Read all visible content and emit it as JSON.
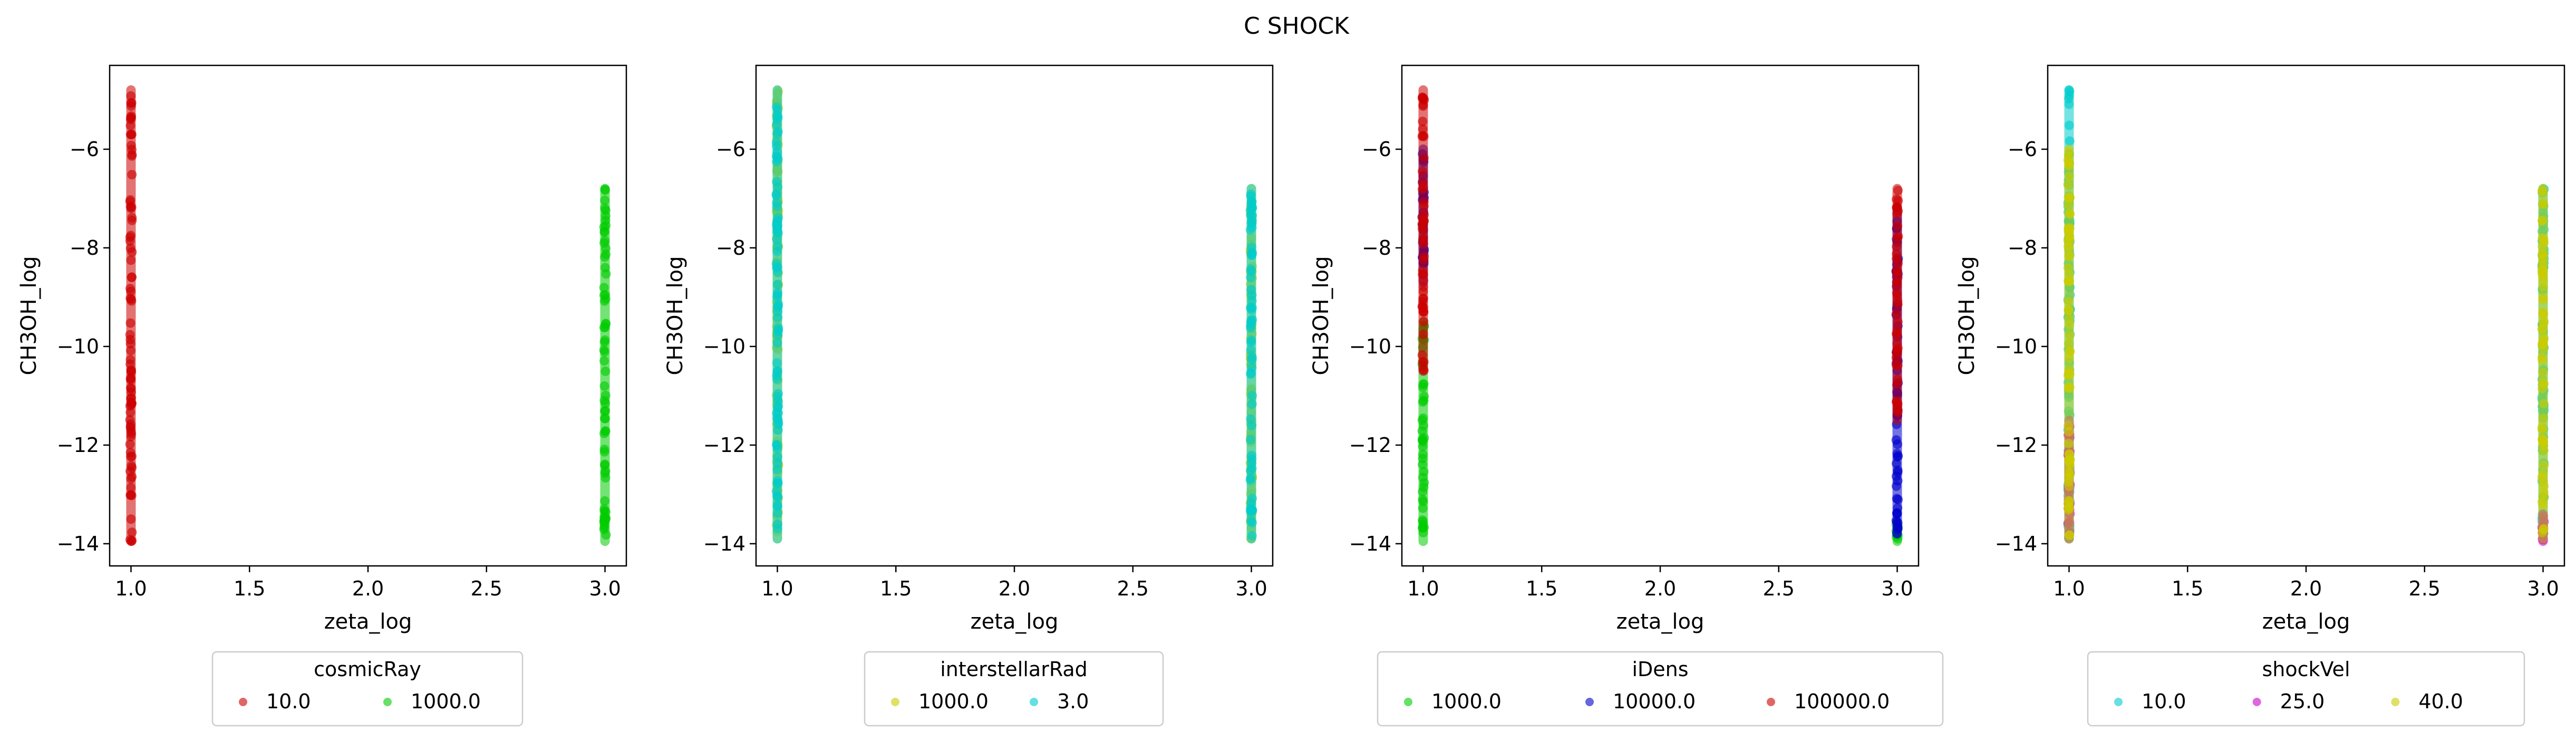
{
  "figure": {
    "title": "C SHOCK"
  },
  "chart_data": [
    {
      "type": "scatter",
      "xlabel": "zeta_log",
      "ylabel": "CH3OH_log",
      "xlim": [
        0.91,
        3.09
      ],
      "ylim": [
        -14.45,
        -4.3
      ],
      "xticks": [
        "1.0",
        "1.5",
        "2.0",
        "2.5",
        "3.0"
      ],
      "yticks": [
        "-6",
        "-8",
        "-10",
        "-12",
        "-14"
      ],
      "xtick_values": [
        1.0,
        1.5,
        2.0,
        2.5,
        3.0
      ],
      "ytick_values": [
        -6,
        -8,
        -10,
        -12,
        -14
      ],
      "legend": {
        "title": "cosmicRay",
        "position": "below"
      },
      "series": [
        {
          "name": "10.0",
          "color": "#cc0000",
          "points": [
            {
              "x": 1.0,
              "y_range": [
                -13.95,
                -4.8
              ]
            }
          ]
        },
        {
          "name": "1000.0",
          "color": "#00cc00",
          "points": [
            {
              "x": 3.0,
              "y_range": [
                -13.95,
                -6.8
              ]
            }
          ]
        }
      ]
    },
    {
      "type": "scatter",
      "xlabel": "zeta_log",
      "ylabel": "CH3OH_log",
      "xlim": [
        0.91,
        3.09
      ],
      "ylim": [
        -14.45,
        -4.3
      ],
      "xticks": [
        "1.0",
        "1.5",
        "2.0",
        "2.5",
        "3.0"
      ],
      "yticks": [
        "-6",
        "-8",
        "-10",
        "-12",
        "-14"
      ],
      "xtick_values": [
        1.0,
        1.5,
        2.0,
        2.5,
        3.0
      ],
      "ytick_values": [
        -6,
        -8,
        -10,
        -12,
        -14
      ],
      "legend": {
        "title": "interstellarRad",
        "position": "below"
      },
      "series": [
        {
          "name": "1000.0",
          "color": "#cccc00",
          "points": [
            {
              "x": 1.0,
              "y_range": [
                -13.9,
                -4.8
              ]
            },
            {
              "x": 3.0,
              "y_range": [
                -13.9,
                -6.8
              ]
            }
          ]
        },
        {
          "name": "3.0",
          "color": "#00cccc",
          "points": [
            {
              "x": 1.0,
              "y_range": [
                -13.9,
                -4.8
              ]
            },
            {
              "x": 3.0,
              "y_range": [
                -13.9,
                -6.8
              ]
            }
          ]
        }
      ]
    },
    {
      "type": "scatter",
      "xlabel": "zeta_log",
      "ylabel": "CH3OH_log",
      "xlim": [
        0.91,
        3.09
      ],
      "ylim": [
        -14.45,
        -4.3
      ],
      "xticks": [
        "1.0",
        "1.5",
        "2.0",
        "2.5",
        "3.0"
      ],
      "yticks": [
        "-6",
        "-8",
        "-10",
        "-12",
        "-14"
      ],
      "xtick_values": [
        1.0,
        1.5,
        2.0,
        2.5,
        3.0
      ],
      "ytick_values": [
        -6,
        -8,
        -10,
        -12,
        -14
      ],
      "legend": {
        "title": "iDens",
        "position": "below"
      },
      "series": [
        {
          "name": "1000.0",
          "color": "#00cc00",
          "points": [
            {
              "x": 1.0,
              "y_range": [
                -13.95,
                -9.5
              ]
            },
            {
              "x": 3.0,
              "y_range": [
                -13.95,
                -13.6
              ]
            }
          ]
        },
        {
          "name": "10000.0",
          "color": "#0000cc",
          "points": [
            {
              "x": 1.0,
              "y_range": [
                -8.7,
                -6.0
              ]
            },
            {
              "x": 3.0,
              "y_range": [
                -13.8,
                -7.2
              ]
            }
          ]
        },
        {
          "name": "100000.0",
          "color": "#cc0000",
          "points": [
            {
              "x": 1.0,
              "y_range": [
                -10.5,
                -4.8
              ]
            },
            {
              "x": 3.0,
              "y_range": [
                -11.5,
                -6.8
              ]
            }
          ]
        }
      ]
    },
    {
      "type": "scatter",
      "xlabel": "zeta_log",
      "ylabel": "CH3OH_log",
      "xlim": [
        0.91,
        3.09
      ],
      "ylim": [
        -14.45,
        -4.3
      ],
      "xticks": [
        "1.0",
        "1.5",
        "2.0",
        "2.5",
        "3.0"
      ],
      "yticks": [
        "-6",
        "-8",
        "-10",
        "-12",
        "-14"
      ],
      "xtick_values": [
        1.0,
        1.5,
        2.0,
        2.5,
        3.0
      ],
      "ytick_values": [
        -6,
        -8,
        -10,
        -12,
        -14
      ],
      "legend": {
        "title": "shockVel",
        "position": "below"
      },
      "series": [
        {
          "name": "10.0",
          "color": "#00cccc",
          "points": [
            {
              "x": 1.0,
              "y_range": [
                -13.9,
                -4.8
              ]
            },
            {
              "x": 3.0,
              "y_range": [
                -13.9,
                -6.8
              ]
            }
          ]
        },
        {
          "name": "25.0",
          "color": "#cc00cc",
          "points": [
            {
              "x": 1.0,
              "y_range": [
                -13.9,
                -11.5
              ]
            },
            {
              "x": 3.0,
              "y_range": [
                -13.95,
                -13.4
              ]
            }
          ]
        },
        {
          "name": "40.0",
          "color": "#cccc00",
          "points": [
            {
              "x": 1.0,
              "y_range": [
                -13.9,
                -6.0
              ]
            },
            {
              "x": 3.0,
              "y_range": [
                -13.9,
                -6.8
              ]
            }
          ]
        }
      ]
    }
  ]
}
